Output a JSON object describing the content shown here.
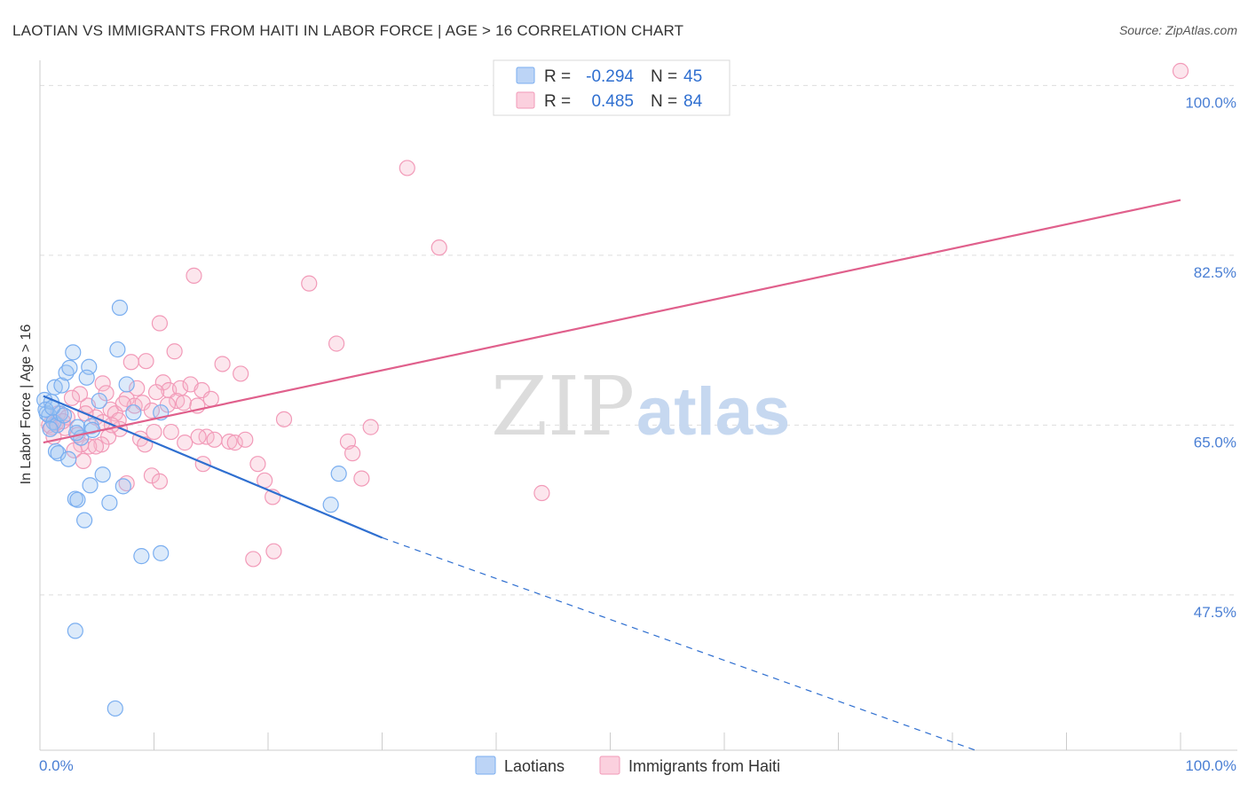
{
  "chart_data": {
    "type": "scatter",
    "title": "LAOTIAN VS IMMIGRANTS FROM HAITI IN LABOR FORCE | AGE > 16 CORRELATION CHART",
    "source": "Source: ZipAtlas.com",
    "ylabel": "In Labor Force | Age > 16",
    "xlabel": "",
    "xlim": [
      0,
      100
    ],
    "ylim": [
      31.5,
      101.5
    ],
    "y_ticks": [
      {
        "value": 100.0,
        "label": "100.0%"
      },
      {
        "value": 82.5,
        "label": "82.5%"
      },
      {
        "value": 65.0,
        "label": "65.0%"
      },
      {
        "value": 47.5,
        "label": "47.5%"
      }
    ],
    "x_tick_labels": {
      "left": "0.0%",
      "right": "100.0%"
    },
    "watermark": {
      "zip": "ZIP",
      "atlas": "atlas"
    },
    "legend": {
      "rows": [
        {
          "r_label": "R =",
          "r_value": "-0.294",
          "n_label": "N =",
          "n_value": "45"
        },
        {
          "r_label": "R =",
          "r_value": "0.485",
          "n_label": "N =",
          "n_value": "84"
        }
      ]
    },
    "series": [
      {
        "name": "Laotians",
        "color": "#7aaef0",
        "line_color": "#2f6fd0",
        "trend": {
          "x0": 0.3,
          "y0": 68.0,
          "x1": 30.0,
          "y1": 53.4,
          "dash_x1": 82.0,
          "dash_y1": 31.5
        },
        "points": [
          [
            0.4,
            67.6
          ],
          [
            0.6,
            66.2
          ],
          [
            0.8,
            66.0
          ],
          [
            1.0,
            67.4
          ],
          [
            0.5,
            66.6
          ],
          [
            1.2,
            65.3
          ],
          [
            1.5,
            65.0
          ],
          [
            0.9,
            64.6
          ],
          [
            1.8,
            66.2
          ],
          [
            2.1,
            66.0
          ],
          [
            1.3,
            68.9
          ],
          [
            1.9,
            69.1
          ],
          [
            2.3,
            70.4
          ],
          [
            2.6,
            70.9
          ],
          [
            2.9,
            72.5
          ],
          [
            4.3,
            71.0
          ],
          [
            4.1,
            69.9
          ],
          [
            5.2,
            67.5
          ],
          [
            7.0,
            77.1
          ],
          [
            6.8,
            72.8
          ],
          [
            7.6,
            69.2
          ],
          [
            3.3,
            64.8
          ],
          [
            3.6,
            63.7
          ],
          [
            1.4,
            62.3
          ],
          [
            1.6,
            62.1
          ],
          [
            2.5,
            61.5
          ],
          [
            3.2,
            64.2
          ],
          [
            4.5,
            64.9
          ],
          [
            4.6,
            64.5
          ],
          [
            8.2,
            66.3
          ],
          [
            10.6,
            66.3
          ],
          [
            5.5,
            59.9
          ],
          [
            4.4,
            58.8
          ],
          [
            6.1,
            57.0
          ],
          [
            7.3,
            58.7
          ],
          [
            3.1,
            57.4
          ],
          [
            3.3,
            57.3
          ],
          [
            3.9,
            55.2
          ],
          [
            8.9,
            51.5
          ],
          [
            10.6,
            51.8
          ],
          [
            25.5,
            56.8
          ],
          [
            26.2,
            60.0
          ],
          [
            3.1,
            43.8
          ],
          [
            6.6,
            35.8
          ],
          [
            1.1,
            66.8
          ]
        ]
      },
      {
        "name": "Immigrants from Haiti",
        "color": "#f29ab8",
        "line_color": "#e0608c",
        "trend": {
          "x0": 0.3,
          "y0": 63.2,
          "x1": 100.0,
          "y1": 88.2
        },
        "points": [
          [
            100.0,
            101.5
          ],
          [
            32.2,
            91.5
          ],
          [
            35.0,
            83.3
          ],
          [
            23.6,
            79.6
          ],
          [
            13.5,
            80.4
          ],
          [
            10.5,
            75.5
          ],
          [
            26.0,
            73.4
          ],
          [
            11.8,
            72.6
          ],
          [
            9.3,
            71.6
          ],
          [
            16.0,
            71.3
          ],
          [
            8.5,
            68.8
          ],
          [
            5.5,
            69.3
          ],
          [
            7.6,
            67.7
          ],
          [
            4.2,
            67.0
          ],
          [
            3.5,
            68.2
          ],
          [
            2.8,
            67.8
          ],
          [
            5.8,
            68.3
          ],
          [
            10.8,
            69.4
          ],
          [
            11.3,
            68.6
          ],
          [
            12.3,
            68.8
          ],
          [
            13.2,
            69.2
          ],
          [
            14.2,
            68.6
          ],
          [
            15.0,
            67.7
          ],
          [
            12.0,
            67.5
          ],
          [
            8.3,
            67.0
          ],
          [
            9.0,
            67.3
          ],
          [
            9.8,
            66.5
          ],
          [
            6.2,
            66.6
          ],
          [
            6.6,
            66.2
          ],
          [
            6.9,
            65.5
          ],
          [
            7.3,
            67.2
          ],
          [
            4.9,
            65.8
          ],
          [
            5.5,
            65.3
          ],
          [
            11.2,
            67.1
          ],
          [
            12.6,
            67.3
          ],
          [
            13.8,
            67.0
          ],
          [
            10.0,
            64.3
          ],
          [
            8.8,
            63.6
          ],
          [
            9.2,
            63.0
          ],
          [
            7.0,
            64.6
          ],
          [
            6.0,
            63.8
          ],
          [
            5.4,
            63.0
          ],
          [
            4.3,
            62.8
          ],
          [
            3.6,
            63.0
          ],
          [
            2.2,
            64.7
          ],
          [
            1.4,
            65.2
          ],
          [
            1.0,
            64.8
          ],
          [
            0.8,
            65.0
          ],
          [
            1.6,
            66.2
          ],
          [
            2.4,
            65.8
          ],
          [
            3.0,
            62.4
          ],
          [
            3.8,
            61.3
          ],
          [
            4.9,
            62.8
          ],
          [
            7.6,
            59.0
          ],
          [
            9.8,
            59.8
          ],
          [
            10.5,
            59.2
          ],
          [
            14.3,
            61.0
          ],
          [
            12.7,
            63.2
          ],
          [
            11.5,
            64.3
          ],
          [
            14.6,
            63.8
          ],
          [
            15.3,
            63.5
          ],
          [
            16.6,
            63.3
          ],
          [
            17.1,
            63.2
          ],
          [
            18.0,
            63.5
          ],
          [
            19.1,
            61.0
          ],
          [
            19.7,
            59.3
          ],
          [
            20.4,
            57.6
          ],
          [
            21.4,
            65.6
          ],
          [
            27.0,
            63.3
          ],
          [
            27.4,
            62.1
          ],
          [
            28.2,
            59.5
          ],
          [
            29.0,
            64.8
          ],
          [
            44.0,
            58.0
          ],
          [
            18.7,
            51.2
          ],
          [
            20.5,
            52.0
          ],
          [
            8.0,
            71.5
          ],
          [
            10.2,
            68.4
          ],
          [
            6.3,
            65.0
          ],
          [
            4.0,
            66.2
          ],
          [
            2.0,
            65.4
          ],
          [
            1.2,
            63.8
          ],
          [
            3.3,
            64.0
          ],
          [
            13.9,
            63.8
          ],
          [
            17.6,
            70.3
          ]
        ]
      }
    ]
  }
}
